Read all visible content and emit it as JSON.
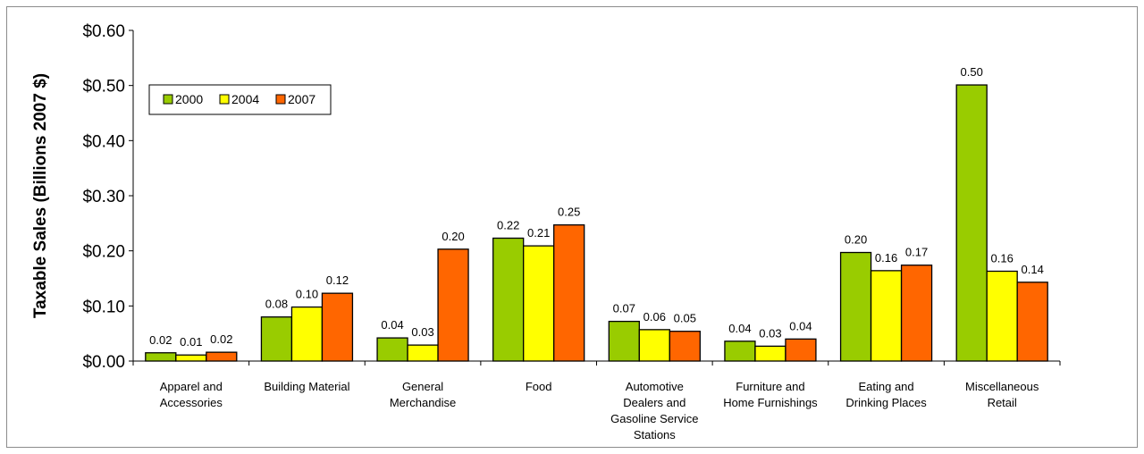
{
  "chart_data": {
    "type": "bar",
    "ylabel": "Taxable Sales (Billions 2007 $)",
    "ylim": [
      0,
      0.6
    ],
    "yticks": [
      "$0.00",
      "$0.10",
      "$0.20",
      "$0.30",
      "$0.40",
      "$0.50",
      "$0.60"
    ],
    "legend_position": "top-left",
    "grid": false,
    "categories": [
      [
        "Apparel and",
        "Accessories"
      ],
      [
        "Building Material"
      ],
      [
        "General",
        "Merchandise"
      ],
      [
        "Food"
      ],
      [
        "Automotive",
        "Dealers and",
        "Gasoline Service",
        "Stations"
      ],
      [
        "Furniture and",
        "Home Furnishings"
      ],
      [
        "Eating and",
        "Drinking Places"
      ],
      [
        "Miscellaneous",
        "Retail"
      ]
    ],
    "series": [
      {
        "name": "2000",
        "color": "#99cc00",
        "values": [
          0.015,
          0.08,
          0.042,
          0.223,
          0.072,
          0.036,
          0.197,
          0.501
        ],
        "labels": [
          "0.02",
          "0.08",
          "0.04",
          "0.22",
          "0.07",
          "0.04",
          "0.20",
          "0.50"
        ]
      },
      {
        "name": "2004",
        "color": "#ffff00",
        "values": [
          0.011,
          0.098,
          0.029,
          0.209,
          0.057,
          0.027,
          0.164,
          0.163
        ],
        "labels": [
          "0.01",
          "0.10",
          "0.03",
          "0.21",
          "0.06",
          "0.03",
          "0.16",
          "0.16"
        ]
      },
      {
        "name": "2007",
        "color": "#ff6600",
        "values": [
          0.016,
          0.123,
          0.203,
          0.247,
          0.054,
          0.04,
          0.174,
          0.143
        ],
        "labels": [
          "0.02",
          "0.12",
          "0.20",
          "0.25",
          "0.05",
          "0.04",
          "0.17",
          "0.14"
        ]
      }
    ]
  }
}
